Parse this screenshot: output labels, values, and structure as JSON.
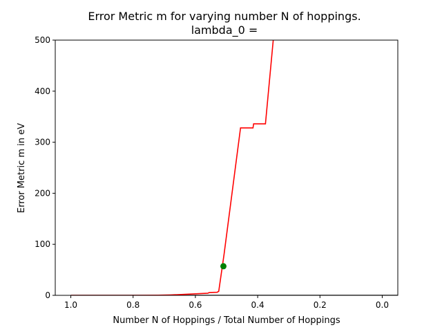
{
  "chart_data": {
    "type": "line",
    "title": "Error Metric m for varying number N of hoppings.",
    "subtitle": "lambda_0 =",
    "xlabel": "Number N of Hoppings / Total Number of Hoppings",
    "ylabel": "Error Metric m in eV",
    "xlim": [
      1.05,
      -0.05
    ],
    "ylim": [
      0,
      500
    ],
    "x_reversed": true,
    "xticks": [
      1.0,
      0.8,
      0.6,
      0.4,
      0.2,
      0.0
    ],
    "xtick_labels": [
      "1.0",
      "0.8",
      "0.6",
      "0.4",
      "0.2",
      "0.0"
    ],
    "yticks": [
      0,
      100,
      200,
      300,
      400,
      500
    ],
    "ytick_labels": [
      "0",
      "100",
      "200",
      "300",
      "400",
      "500"
    ],
    "grid": false,
    "series": [
      {
        "color": "#ff0000",
        "points": [
          [
            1.0,
            0.0
          ],
          [
            0.9,
            0.0
          ],
          [
            0.8,
            0.0
          ],
          [
            0.72,
            0.2
          ],
          [
            0.68,
            0.8
          ],
          [
            0.64,
            1.8
          ],
          [
            0.6,
            3.0
          ],
          [
            0.56,
            4.2
          ],
          [
            0.555,
            5.5
          ],
          [
            0.53,
            6.0
          ],
          [
            0.525,
            8.0
          ],
          [
            0.508,
            80.0
          ],
          [
            0.455,
            328.0
          ],
          [
            0.415,
            328.0
          ],
          [
            0.413,
            336.0
          ],
          [
            0.375,
            336.0
          ],
          [
            0.35,
            500.0
          ]
        ]
      }
    ],
    "markers": [
      {
        "x": 0.51,
        "y": 57.0,
        "color": "#008000"
      }
    ],
    "bottom_line": {
      "y": 0.0,
      "x_from": 1.0,
      "x_to": -0.05,
      "color": "#000000"
    }
  }
}
